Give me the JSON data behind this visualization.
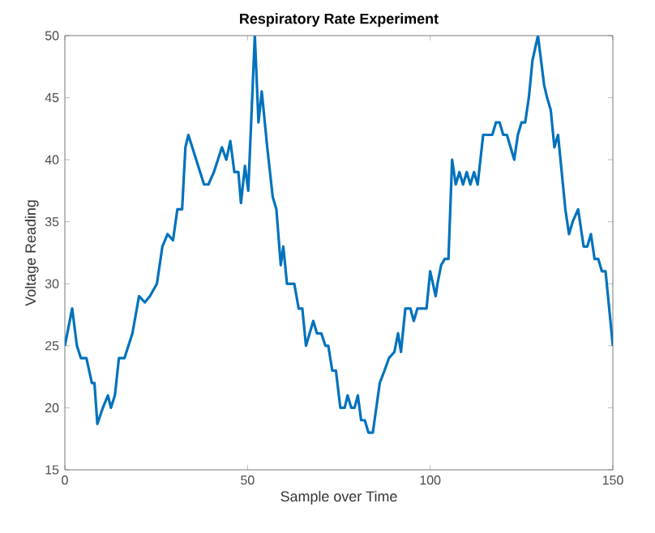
{
  "chart_data": {
    "type": "line",
    "title": "Respiratory Rate Experiment",
    "xlabel": "Sample over Time",
    "ylabel": "Voltage Reading",
    "xlim": [
      0,
      150
    ],
    "ylim": [
      15,
      50
    ],
    "xticks": [
      0,
      50,
      100,
      150
    ],
    "yticks": [
      15,
      20,
      25,
      30,
      35,
      40,
      45,
      50
    ],
    "grid": false,
    "marker": "none",
    "line_style": "solid",
    "series": [
      {
        "color": "#0072bd",
        "x": [
          0,
          2,
          3.3,
          4.4,
          5.9,
          7.4,
          8.1,
          8.9,
          10.4,
          11.8,
          12.6,
          13.7,
          14.8,
          16.3,
          18.5,
          20.3,
          21.9,
          23.3,
          25.2,
          26.7,
          28.1,
          29.6,
          30.8,
          32.1,
          33,
          33.8,
          38.1,
          39.3,
          40.8,
          43,
          44.2,
          45.3,
          46.4,
          47.5,
          48.2,
          49.3,
          50.2,
          52,
          53,
          53.9,
          55.4,
          56.9,
          57.9,
          59.1,
          59.8,
          60.8,
          62.8,
          64,
          65,
          66,
          68,
          69,
          70.2,
          71.3,
          72.1,
          73.2,
          74.2,
          75.4,
          76.6,
          77.4,
          78.4,
          79.3,
          80.2,
          81.1,
          82.1,
          83.1,
          84.3,
          86.2,
          87.5,
          88.7,
          90.2,
          91.2,
          92,
          93.2,
          94.6,
          95.5,
          96.5,
          99,
          100,
          101.5,
          102,
          103,
          104,
          105,
          106,
          107,
          108,
          109,
          110,
          111,
          112,
          113,
          114.5,
          116,
          117,
          118,
          119,
          120,
          121,
          122,
          123,
          124,
          125,
          126,
          127,
          128,
          129.5,
          131.2,
          132,
          133,
          134,
          135,
          136,
          137,
          138,
          139,
          140.5,
          141,
          142,
          143,
          144,
          145,
          146,
          147,
          148,
          149,
          150
        ],
        "values": [
          25,
          28,
          25,
          24,
          24,
          22,
          22,
          18.7,
          20,
          21,
          20,
          21,
          24,
          24,
          26,
          29,
          28.5,
          29,
          30,
          33,
          34,
          33.5,
          36,
          36,
          41,
          42,
          38,
          38,
          39,
          41,
          40,
          41.5,
          39,
          39,
          36.5,
          39.5,
          37.5,
          50,
          43,
          45.5,
          41,
          37,
          36,
          31.5,
          33,
          30,
          30,
          28,
          28,
          25,
          27,
          26,
          26,
          25,
          25,
          23,
          23,
          20,
          20,
          21,
          20,
          20,
          21,
          19,
          19,
          18,
          18,
          22,
          23,
          24,
          24.5,
          26,
          24.5,
          28,
          28,
          27,
          28,
          28,
          31,
          29,
          30,
          31.5,
          32,
          32,
          40,
          38,
          39,
          38,
          39,
          38,
          39,
          38,
          42,
          42,
          42,
          43,
          43,
          42,
          42,
          41,
          40,
          42,
          43,
          43,
          45,
          48,
          50,
          46,
          45,
          44,
          41,
          42,
          39,
          36,
          34,
          35,
          36,
          35,
          33,
          33,
          34,
          32,
          32,
          31,
          31,
          28,
          25
        ]
      }
    ]
  }
}
